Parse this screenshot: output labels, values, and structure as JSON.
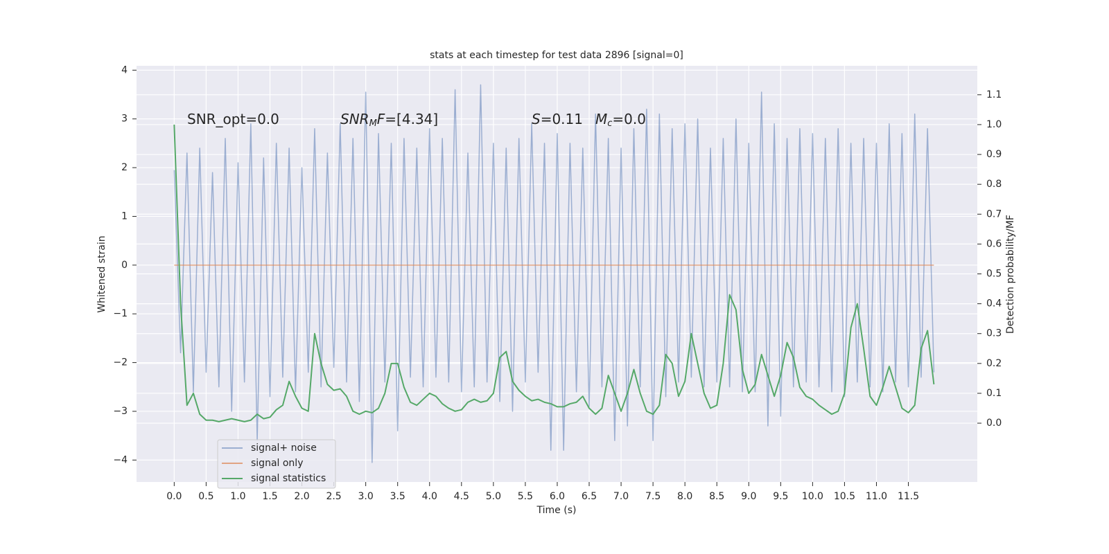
{
  "chart_data": {
    "type": "line",
    "title": "stats at each timestep for test data 2896 [signal=0]",
    "x_label": "Time (s)",
    "y_label": "Whitened strain",
    "y2_label": "Detection probability/MF",
    "x": [
      0,
      0.1,
      0.2,
      0.3,
      0.4,
      0.5,
      0.6,
      0.7,
      0.8,
      0.9,
      1,
      1.1,
      1.2,
      1.3,
      1.4,
      1.5,
      1.6,
      1.7,
      1.8,
      1.9,
      2,
      2.1,
      2.2,
      2.3,
      2.4,
      2.5,
      2.6,
      2.7,
      2.8,
      2.9,
      3,
      3.1,
      3.2,
      3.3,
      3.4,
      3.5,
      3.6,
      3.7,
      3.8,
      3.9,
      4,
      4.1,
      4.2,
      4.3,
      4.4,
      4.5,
      4.6,
      4.7,
      4.8,
      4.9,
      5,
      5.1,
      5.2,
      5.3,
      5.4,
      5.5,
      5.6,
      5.7,
      5.8,
      5.9,
      6,
      6.1,
      6.2,
      6.3,
      6.4,
      6.5,
      6.6,
      6.7,
      6.8,
      6.9,
      7,
      7.1,
      7.2,
      7.3,
      7.4,
      7.5,
      7.6,
      7.7,
      7.8,
      7.9,
      8,
      8.1,
      8.2,
      8.3,
      8.4,
      8.5,
      8.6,
      8.7,
      8.8,
      8.9,
      9,
      9.1,
      9.2,
      9.3,
      9.4,
      9.5,
      9.6,
      9.7,
      9.8,
      9.9,
      10,
      10.1,
      10.2,
      10.3,
      10.4,
      10.5,
      10.6,
      10.7,
      10.8,
      10.9,
      11,
      11.1,
      11.2,
      11.3,
      11.4,
      11.5,
      11.6,
      11.7,
      11.8,
      11.9
    ],
    "series": [
      {
        "name": "signal+ noise",
        "color": "#4c72b0",
        "opacity": 0.5,
        "values": [
          1.95,
          -1.8,
          2.3,
          -2.6,
          2.4,
          -2.2,
          1.9,
          -2.5,
          2.6,
          -3.0,
          2.1,
          -2.4,
          2.9,
          -3.6,
          2.2,
          -2.7,
          2.5,
          -2.3,
          2.4,
          -2.6,
          2.0,
          -2.2,
          2.8,
          -2.5,
          2.3,
          -2.1,
          2.9,
          -2.4,
          2.6,
          -2.8,
          3.55,
          -4.05,
          2.7,
          -2.4,
          2.5,
          -3.4,
          2.6,
          -2.3,
          2.4,
          -2.5,
          2.8,
          -2.3,
          2.6,
          -2.4,
          3.6,
          -2.6,
          2.3,
          -2.5,
          3.7,
          -2.4,
          2.5,
          -2.8,
          2.4,
          -3.0,
          2.6,
          -2.4,
          2.9,
          -2.2,
          2.5,
          -3.8,
          2.7,
          -3.8,
          2.5,
          -2.6,
          2.4,
          -2.9,
          3.1,
          -2.5,
          2.6,
          -3.6,
          2.4,
          -3.3,
          2.8,
          -2.5,
          3.2,
          -3.6,
          3.1,
          -2.7,
          2.8,
          -2.4,
          2.9,
          -2.3,
          3.0,
          -2.5,
          2.4,
          -2.4,
          2.6,
          -2.5,
          3.0,
          -2.6,
          2.5,
          -2.6,
          3.55,
          -3.3,
          2.9,
          -3.1,
          2.6,
          -2.5,
          2.8,
          -2.4,
          2.7,
          -2.5,
          2.6,
          -2.6,
          2.8,
          -2.7,
          2.5,
          -2.4,
          2.6,
          -2.5,
          2.5,
          -2.6,
          2.9,
          -2.4,
          2.7,
          -2.5,
          3.1,
          -2.3,
          2.8,
          -2.2
        ]
      },
      {
        "name": "signal only",
        "color": "#dd8452",
        "opacity": 0.7,
        "values": [
          0,
          0,
          0,
          0,
          0,
          0,
          0,
          0,
          0,
          0,
          0,
          0,
          0,
          0,
          0,
          0,
          0,
          0,
          0,
          0,
          0,
          0,
          0,
          0,
          0,
          0,
          0,
          0,
          0,
          0,
          0,
          0,
          0,
          0,
          0,
          0,
          0,
          0,
          0,
          0,
          0,
          0,
          0,
          0,
          0,
          0,
          0,
          0,
          0,
          0,
          0,
          0,
          0,
          0,
          0,
          0,
          0,
          0,
          0,
          0,
          0,
          0,
          0,
          0,
          0,
          0,
          0,
          0,
          0,
          0,
          0,
          0,
          0,
          0,
          0,
          0,
          0,
          0,
          0,
          0,
          0,
          0,
          0,
          0,
          0,
          0,
          0,
          0,
          0,
          0,
          0,
          0,
          0,
          0,
          0,
          0,
          0,
          0,
          0,
          0,
          0,
          0,
          0,
          0,
          0,
          0,
          0,
          0,
          0,
          0,
          0,
          0,
          0,
          0,
          0,
          0,
          0,
          0,
          0,
          0
        ]
      },
      {
        "name": "signal statistics",
        "color": "#55a868",
        "opacity": 1,
        "axis": "y2",
        "values": [
          1.0,
          0.4,
          0.06,
          0.1,
          0.03,
          0.01,
          0.01,
          0.005,
          0.01,
          0.015,
          0.01,
          0.005,
          0.01,
          0.03,
          0.015,
          0.02,
          0.045,
          0.06,
          0.14,
          0.09,
          0.05,
          0.04,
          0.3,
          0.2,
          0.13,
          0.11,
          0.115,
          0.09,
          0.04,
          0.03,
          0.04,
          0.035,
          0.05,
          0.1,
          0.2,
          0.2,
          0.12,
          0.07,
          0.06,
          0.08,
          0.1,
          0.09,
          0.065,
          0.05,
          0.04,
          0.045,
          0.07,
          0.08,
          0.07,
          0.075,
          0.1,
          0.22,
          0.24,
          0.14,
          0.11,
          0.09,
          0.075,
          0.08,
          0.07,
          0.065,
          0.055,
          0.055,
          0.065,
          0.07,
          0.09,
          0.05,
          0.03,
          0.05,
          0.16,
          0.1,
          0.04,
          0.1,
          0.18,
          0.1,
          0.04,
          0.03,
          0.06,
          0.23,
          0.2,
          0.09,
          0.14,
          0.3,
          0.2,
          0.1,
          0.05,
          0.06,
          0.2,
          0.43,
          0.38,
          0.18,
          0.1,
          0.13,
          0.23,
          0.16,
          0.09,
          0.16,
          0.27,
          0.22,
          0.12,
          0.09,
          0.08,
          0.06,
          0.045,
          0.03,
          0.04,
          0.1,
          0.32,
          0.4,
          0.25,
          0.09,
          0.06,
          0.12,
          0.19,
          0.12,
          0.05,
          0.035,
          0.06,
          0.25,
          0.31,
          0.13
        ]
      }
    ],
    "xlim": [
      -0.59,
      12.58
    ],
    "ylim": [
      -4.45,
      4.09
    ],
    "y2lim": [
      -0.197,
      1.197
    ],
    "xticks": [
      {
        "value": 0,
        "label": "0.0"
      },
      0.5,
      {
        "value": 1,
        "label": "1.0"
      },
      1.5,
      {
        "value": 2,
        "label": "2.0"
      },
      2.5,
      {
        "value": 3,
        "label": "3.0"
      },
      3.5,
      {
        "value": 4,
        "label": "4.0"
      },
      4.5,
      {
        "value": 5,
        "label": "5.0"
      },
      5.5,
      {
        "value": 6,
        "label": "6.0"
      },
      6.5,
      {
        "value": 7,
        "label": "7.0"
      },
      7.5,
      {
        "value": 8,
        "label": "8.0"
      },
      8.5,
      {
        "value": 9,
        "label": "9.0"
      },
      9.5,
      {
        "value": 10,
        "label": "10.0"
      },
      10.5,
      {
        "value": 11,
        "label": "11.0"
      },
      11.5
    ],
    "yticks": [
      {
        "value": -4,
        "label": "−4"
      },
      {
        "value": -3,
        "label": "−3"
      },
      {
        "value": -2,
        "label": "−2"
      },
      {
        "value": -1,
        "label": "−1"
      },
      0,
      1,
      2,
      3,
      4
    ],
    "y2ticks": [
      {
        "value": 0,
        "label": "0.0"
      },
      0.1,
      0.2,
      0.3,
      0.4,
      0.5,
      0.6,
      0.7,
      0.8,
      0.9,
      {
        "value": 1,
        "label": "1.0"
      },
      1.1
    ],
    "grid": true,
    "legend": "lower left",
    "annotations": [
      [
        {
          "text": "SNR_opt=0.0"
        }
      ],
      [
        {
          "text": "SNR",
          "style": "italic"
        },
        {
          "text": "M",
          "style": "italic-sub"
        },
        {
          "text": "F",
          "style": "italic"
        },
        {
          "text": "=[4.34]"
        }
      ],
      [
        {
          "text": "S",
          "style": "italic"
        },
        {
          "text": "=0.11"
        }
      ],
      [
        {
          "text": "M",
          "style": "italic"
        },
        {
          "text": "c",
          "style": "italic-sub"
        },
        {
          "text": "=0.0"
        }
      ]
    ]
  }
}
